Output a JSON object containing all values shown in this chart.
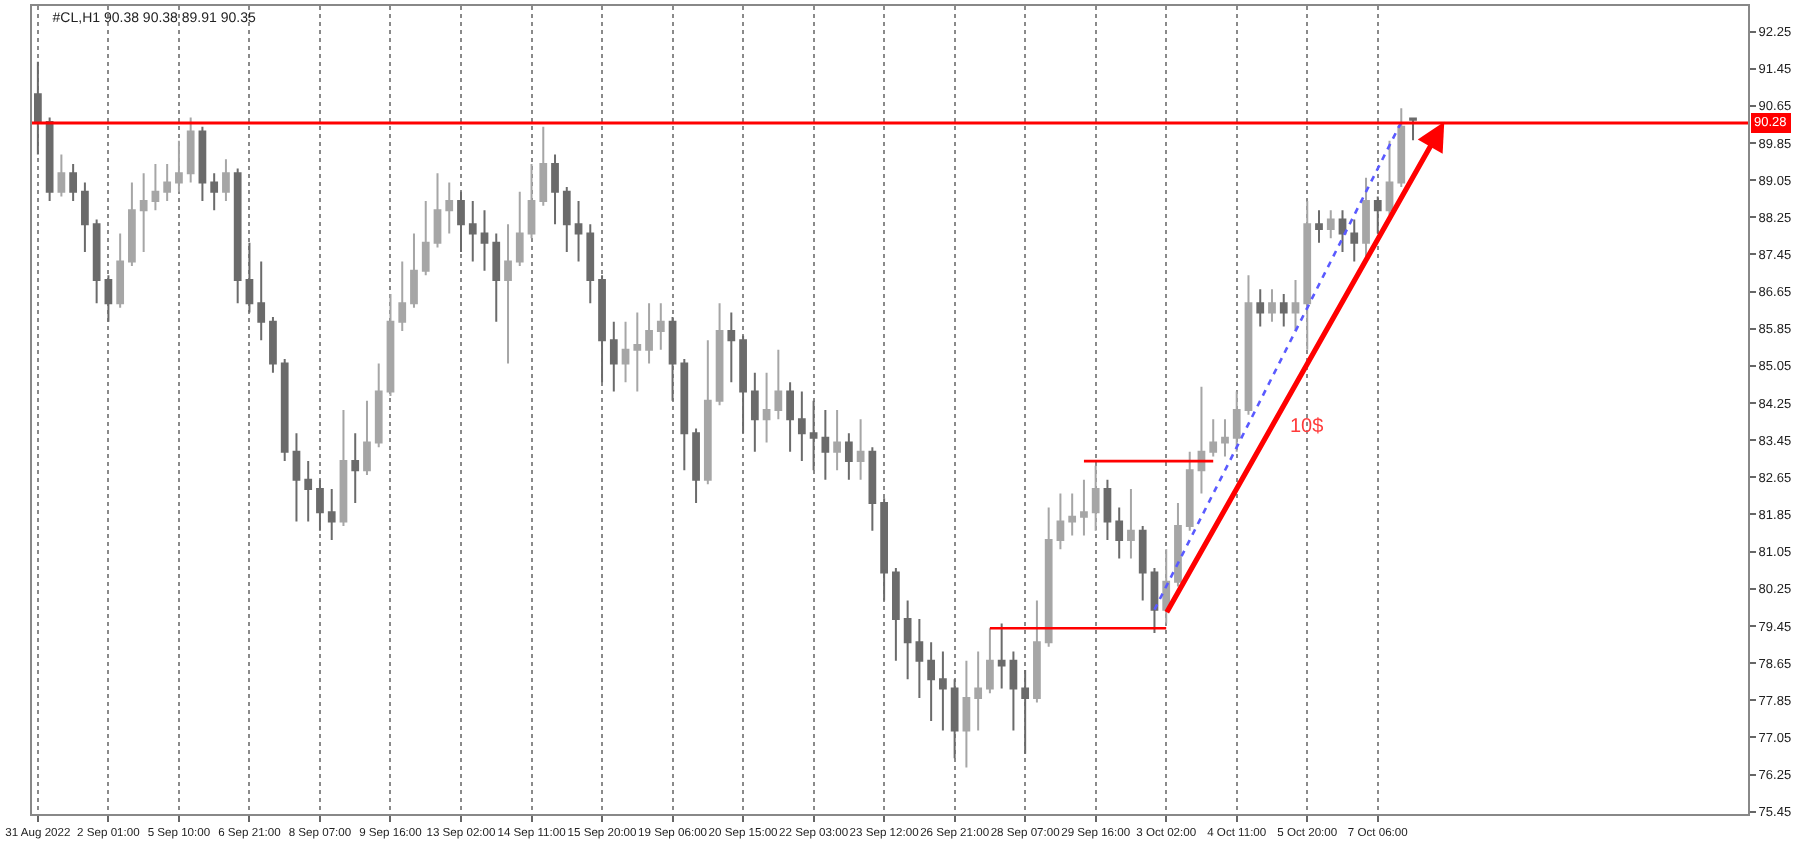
{
  "chart_data": {
    "type": "candlestick",
    "title": "#CL,H1 90.38 90.38 89.91 90.35",
    "categories": [
      "31 Aug 2022",
      null,
      null,
      null,
      null,
      null,
      "2 Sep 01:00",
      null,
      null,
      null,
      null,
      null,
      "5 Sep 10:00",
      null,
      null,
      null,
      null,
      null,
      "6 Sep 21:00",
      null,
      null,
      null,
      null,
      null,
      "8 Sep 07:00",
      null,
      null,
      null,
      null,
      null,
      "9 Sep 16:00",
      null,
      null,
      null,
      null,
      null,
      "13 Sep 02:00",
      null,
      null,
      null,
      null,
      null,
      "14 Sep 11:00",
      null,
      null,
      null,
      null,
      null,
      "15 Sep 20:00",
      null,
      null,
      null,
      null,
      null,
      "19 Sep 06:00",
      null,
      null,
      null,
      null,
      null,
      "20 Sep 15:00",
      null,
      null,
      null,
      null,
      null,
      "22 Sep 03:00",
      null,
      null,
      null,
      null,
      null,
      "23 Sep 12:00",
      null,
      null,
      null,
      null,
      null,
      "26 Sep 21:00",
      null,
      null,
      null,
      null,
      null,
      "28 Sep 07:00",
      null,
      null,
      null,
      null,
      null,
      "29 Sep 16:00",
      null,
      null,
      null,
      null,
      null,
      "3 Oct 02:00",
      null,
      null,
      null,
      null,
      null,
      "4 Oct 11:00",
      null,
      null,
      null,
      null,
      null,
      "5 Oct 20:00",
      null,
      null,
      null,
      null,
      null,
      "7 Oct 06:00",
      null,
      null,
      null,
      null,
      null,
      null,
      null,
      null,
      null,
      null,
      null,
      null,
      null,
      null,
      null,
      null,
      null,
      null,
      null,
      null,
      null,
      null,
      null,
      null,
      null,
      null,
      null,
      null,
      null,
      null,
      null
    ],
    "ohlc": [
      [
        90.9,
        91.6,
        89.6,
        90.3
      ],
      [
        90.3,
        90.4,
        88.6,
        88.8
      ],
      [
        88.8,
        89.6,
        88.7,
        89.2
      ],
      [
        89.2,
        89.4,
        88.6,
        88.8
      ],
      [
        88.8,
        89.0,
        87.5,
        88.1
      ],
      [
        88.1,
        88.2,
        86.4,
        86.9
      ],
      [
        86.9,
        87.0,
        86.0,
        86.4
      ],
      [
        86.4,
        87.9,
        86.3,
        87.3
      ],
      [
        87.3,
        89.0,
        87.2,
        88.4
      ],
      [
        88.4,
        89.2,
        87.5,
        88.6
      ],
      [
        88.6,
        89.4,
        88.4,
        88.8
      ],
      [
        88.8,
        89.4,
        88.6,
        89.0
      ],
      [
        89.0,
        89.9,
        88.8,
        89.2
      ],
      [
        89.2,
        90.4,
        89.0,
        90.1
      ],
      [
        90.1,
        90.2,
        88.6,
        89.0
      ],
      [
        89.0,
        89.2,
        88.4,
        88.8
      ],
      [
        88.8,
        89.5,
        88.6,
        89.2
      ],
      [
        89.2,
        89.3,
        86.4,
        86.9
      ],
      [
        86.9,
        87.7,
        86.2,
        86.4
      ],
      [
        86.4,
        87.3,
        85.6,
        86.0
      ],
      [
        86.0,
        86.1,
        84.9,
        85.1
      ],
      [
        85.1,
        85.2,
        83.0,
        83.2
      ],
      [
        83.2,
        83.6,
        81.7,
        82.6
      ],
      [
        82.6,
        83.0,
        81.7,
        82.4
      ],
      [
        82.4,
        82.6,
        81.5,
        81.9
      ],
      [
        81.9,
        82.4,
        81.3,
        81.7
      ],
      [
        81.7,
        84.1,
        81.6,
        83.0
      ],
      [
        83.0,
        83.6,
        82.1,
        82.8
      ],
      [
        82.8,
        84.3,
        82.7,
        83.4
      ],
      [
        83.4,
        85.1,
        83.3,
        84.5
      ],
      [
        84.5,
        86.6,
        84.4,
        86.0
      ],
      [
        86.0,
        87.3,
        85.8,
        86.4
      ],
      [
        86.4,
        87.9,
        86.3,
        87.1
      ],
      [
        87.1,
        88.6,
        87.0,
        87.7
      ],
      [
        87.7,
        89.2,
        87.6,
        88.4
      ],
      [
        88.4,
        89.0,
        87.9,
        88.6
      ],
      [
        88.6,
        88.8,
        87.5,
        88.1
      ],
      [
        88.1,
        88.6,
        87.3,
        87.9
      ],
      [
        87.9,
        88.4,
        87.1,
        87.7
      ],
      [
        87.7,
        87.9,
        86.0,
        86.9
      ],
      [
        86.9,
        88.1,
        85.1,
        87.3
      ],
      [
        87.3,
        88.8,
        87.2,
        87.9
      ],
      [
        87.9,
        89.4,
        87.8,
        88.6
      ],
      [
        88.6,
        90.2,
        88.5,
        89.4
      ],
      [
        89.4,
        89.6,
        88.1,
        88.8
      ],
      [
        88.8,
        88.9,
        87.5,
        88.1
      ],
      [
        88.1,
        88.6,
        87.3,
        87.9
      ],
      [
        87.9,
        88.1,
        86.4,
        86.9
      ],
      [
        86.9,
        87.0,
        84.7,
        85.6
      ],
      [
        85.6,
        86.0,
        84.5,
        85.1
      ],
      [
        85.1,
        86.0,
        84.7,
        85.4
      ],
      [
        85.4,
        86.2,
        84.5,
        85.5
      ],
      [
        85.4,
        86.4,
        85.1,
        85.8
      ],
      [
        85.8,
        86.4,
        85.4,
        86.0
      ],
      [
        86.0,
        86.1,
        84.3,
        85.1
      ],
      [
        85.1,
        85.2,
        82.8,
        83.6
      ],
      [
        83.6,
        83.7,
        82.1,
        82.6
      ],
      [
        82.6,
        85.6,
        82.5,
        84.3
      ],
      [
        84.3,
        86.4,
        84.2,
        85.8
      ],
      [
        85.8,
        86.2,
        84.7,
        85.6
      ],
      [
        85.6,
        85.7,
        83.6,
        84.5
      ],
      [
        84.5,
        84.9,
        83.2,
        83.9
      ],
      [
        83.9,
        84.9,
        83.4,
        84.1
      ],
      [
        84.1,
        85.4,
        83.9,
        84.5
      ],
      [
        84.5,
        84.7,
        83.2,
        83.9
      ],
      [
        83.9,
        84.5,
        83.0,
        83.6
      ],
      [
        83.6,
        84.3,
        82.8,
        83.5
      ],
      [
        83.5,
        84.1,
        82.6,
        83.2
      ],
      [
        83.2,
        84.1,
        82.8,
        83.4
      ],
      [
        83.4,
        83.6,
        82.6,
        83.0
      ],
      [
        83.0,
        83.9,
        82.6,
        83.2
      ],
      [
        83.2,
        83.3,
        81.5,
        82.1
      ],
      [
        82.1,
        82.2,
        80.0,
        80.6
      ],
      [
        80.6,
        80.7,
        78.7,
        79.6
      ],
      [
        79.6,
        80.0,
        78.3,
        79.1
      ],
      [
        79.1,
        79.6,
        77.9,
        78.7
      ],
      [
        78.7,
        79.1,
        77.4,
        78.3
      ],
      [
        78.3,
        78.9,
        77.2,
        78.1
      ],
      [
        78.1,
        78.3,
        76.6,
        77.2
      ],
      [
        77.2,
        78.7,
        76.4,
        77.9
      ],
      [
        77.9,
        78.9,
        77.2,
        78.1
      ],
      [
        78.1,
        79.4,
        78.0,
        78.7
      ],
      [
        78.7,
        79.5,
        78.1,
        78.6
      ],
      [
        78.7,
        78.9,
        77.2,
        78.1
      ],
      [
        78.1,
        78.5,
        76.7,
        77.9
      ],
      [
        77.9,
        80.0,
        77.8,
        79.1
      ],
      [
        79.1,
        82.0,
        79.0,
        81.3
      ],
      [
        81.3,
        82.3,
        81.1,
        81.7
      ],
      [
        81.7,
        82.3,
        81.4,
        81.8
      ],
      [
        81.8,
        82.6,
        81.4,
        81.9
      ],
      [
        81.9,
        82.9,
        81.5,
        82.4
      ],
      [
        82.4,
        82.6,
        81.3,
        81.7
      ],
      [
        81.7,
        82.0,
        80.9,
        81.3
      ],
      [
        81.3,
        82.4,
        80.9,
        81.5
      ],
      [
        81.5,
        81.6,
        80.0,
        80.6
      ],
      [
        80.6,
        80.7,
        79.3,
        79.8
      ],
      [
        79.8,
        81.1,
        79.5,
        80.4
      ],
      [
        80.4,
        82.1,
        80.3,
        81.6
      ],
      [
        81.6,
        83.2,
        81.5,
        82.8
      ],
      [
        82.8,
        84.6,
        82.3,
        83.2
      ],
      [
        83.2,
        83.9,
        83.1,
        83.4
      ],
      [
        83.4,
        83.9,
        83.1,
        83.5
      ],
      [
        83.5,
        84.5,
        83.2,
        84.1
      ],
      [
        84.1,
        87.0,
        84.0,
        86.4
      ],
      [
        86.4,
        86.7,
        85.9,
        86.2
      ],
      [
        86.2,
        86.7,
        86.0,
        86.4
      ],
      [
        86.4,
        86.6,
        85.9,
        86.2
      ],
      [
        86.2,
        86.9,
        85.8,
        86.4
      ],
      [
        86.4,
        88.6,
        85.4,
        88.1
      ],
      [
        88.1,
        88.4,
        87.7,
        88.0
      ],
      [
        88.0,
        88.4,
        87.8,
        88.2
      ],
      [
        88.2,
        88.4,
        87.5,
        87.9
      ],
      [
        87.9,
        88.2,
        87.3,
        87.7
      ],
      [
        87.7,
        89.1,
        87.4,
        88.6
      ],
      [
        88.6,
        88.7,
        87.9,
        88.4
      ],
      [
        88.4,
        89.9,
        88.3,
        89.0
      ],
      [
        89.0,
        90.6,
        88.9,
        90.2
      ],
      [
        90.38,
        90.38,
        89.91,
        90.35
      ],
      null,
      null,
      null,
      null,
      null,
      null,
      null,
      null,
      null,
      null,
      null,
      null,
      null,
      null,
      null,
      null,
      null,
      null,
      null,
      null,
      null,
      null,
      null,
      null,
      null,
      null,
      null,
      null
    ],
    "colors": [
      "#6b6b6b",
      "#6b6b6b",
      "#a6a6a6",
      "#6b6b6b",
      "#6b6b6b",
      "#6b6b6b",
      "#6b6b6b",
      "#a6a6a6",
      "#a6a6a6",
      "#a6a6a6",
      "#a6a6a6",
      "#a6a6a6",
      "#a6a6a6",
      "#a6a6a6",
      "#6b6b6b",
      "#6b6b6b",
      "#a6a6a6",
      "#6b6b6b",
      "#6b6b6b",
      "#6b6b6b",
      "#6b6b6b",
      "#6b6b6b",
      "#6b6b6b",
      "#6b6b6b",
      "#6b6b6b",
      "#6b6b6b",
      "#a6a6a6",
      "#6b6b6b",
      "#a6a6a6",
      "#a6a6a6",
      "#a6a6a6",
      "#a6a6a6",
      "#a6a6a6",
      "#a6a6a6",
      "#a6a6a6",
      "#a6a6a6",
      "#6b6b6b",
      "#6b6b6b",
      "#6b6b6b",
      "#6b6b6b",
      "#a6a6a6",
      "#a6a6a6",
      "#a6a6a6",
      "#a6a6a6",
      "#6b6b6b",
      "#6b6b6b",
      "#6b6b6b",
      "#6b6b6b",
      "#6b6b6b",
      "#6b6b6b",
      "#a6a6a6",
      "#a6a6a6",
      "#a6a6a6",
      "#a6a6a6",
      "#6b6b6b",
      "#6b6b6b",
      "#6b6b6b",
      "#a6a6a6",
      "#a6a6a6",
      "#6b6b6b",
      "#6b6b6b",
      "#6b6b6b",
      "#a6a6a6",
      "#a6a6a6",
      "#6b6b6b",
      "#6b6b6b",
      "#6b6b6b",
      "#6b6b6b",
      "#a6a6a6",
      "#6b6b6b",
      "#a6a6a6",
      "#6b6b6b",
      "#6b6b6b",
      "#6b6b6b",
      "#6b6b6b",
      "#6b6b6b",
      "#6b6b6b",
      "#6b6b6b",
      "#6b6b6b",
      "#a6a6a6",
      "#a6a6a6",
      "#a6a6a6",
      "#6b6b6b",
      "#6b6b6b",
      "#6b6b6b",
      "#a6a6a6",
      "#a6a6a6",
      "#a6a6a6",
      "#a6a6a6",
      "#a6a6a6",
      "#a6a6a6",
      "#6b6b6b",
      "#6b6b6b",
      "#a6a6a6",
      "#6b6b6b",
      "#6b6b6b",
      "#a6a6a6",
      "#a6a6a6",
      "#a6a6a6",
      "#a6a6a6",
      "#a6a6a6",
      "#a6a6a6",
      "#a6a6a6",
      "#a6a6a6",
      "#6b6b6b",
      "#a6a6a6",
      "#6b6b6b",
      "#a6a6a6",
      "#a6a6a6",
      "#6b6b6b",
      "#a6a6a6",
      "#6b6b6b",
      "#6b6b6b",
      "#a6a6a6",
      "#6b6b6b",
      "#a6a6a6",
      "#a6a6a6",
      "#6b6b6b",
      null,
      null,
      null,
      null,
      null,
      null,
      null,
      null,
      null,
      null,
      null,
      null,
      null,
      null,
      null,
      null,
      null,
      null,
      null,
      null,
      null,
      null,
      null,
      null,
      null,
      null,
      null,
      null
    ],
    "series": [
      {
        "type": "line",
        "color": "#ff0000",
        "values": [
          null,
          null,
          null,
          null,
          null,
          null,
          null,
          null,
          null,
          null,
          null,
          null,
          null,
          null,
          null,
          null,
          null,
          null,
          null,
          null,
          null,
          null,
          null,
          null,
          null,
          null,
          null,
          null,
          null,
          null,
          null,
          null,
          null,
          null,
          null,
          null,
          null,
          null,
          null,
          null,
          null,
          null,
          null,
          null,
          null,
          null,
          null,
          null,
          null,
          null,
          null,
          null,
          null,
          null,
          null,
          null,
          null,
          null,
          null,
          null,
          null,
          null,
          null,
          null,
          null,
          null,
          null,
          null,
          null,
          null,
          null,
          null,
          null,
          null,
          null,
          null,
          null,
          null,
          null,
          null,
          null,
          79.4,
          null,
          null,
          null,
          null,
          null,
          null,
          null,
          null,
          null,
          null,
          null,
          null,
          null,
          null,
          79.4,
          null,
          null,
          null,
          null,
          null,
          null,
          null,
          null,
          null,
          null,
          null,
          null,
          null,
          null,
          null,
          null,
          null,
          null,
          null,
          null,
          null,
          null,
          null,
          null,
          null,
          null,
          null,
          null,
          null,
          null,
          null,
          null,
          null,
          null,
          null,
          null,
          null,
          null,
          null,
          null,
          null,
          null,
          null,
          null,
          null,
          null,
          null,
          null,
          null
        ]
      },
      {
        "type": "line",
        "color": "#ff0000",
        "values": [
          null,
          null,
          null,
          null,
          null,
          null,
          null,
          null,
          null,
          null,
          null,
          null,
          null,
          null,
          null,
          null,
          null,
          null,
          null,
          null,
          null,
          null,
          null,
          null,
          null,
          null,
          null,
          null,
          null,
          null,
          null,
          null,
          null,
          null,
          null,
          null,
          null,
          null,
          null,
          null,
          null,
          null,
          null,
          null,
          null,
          null,
          null,
          null,
          null,
          null,
          null,
          null,
          null,
          null,
          null,
          null,
          null,
          null,
          null,
          null,
          null,
          null,
          null,
          null,
          null,
          null,
          null,
          null,
          null,
          null,
          null,
          null,
          null,
          null,
          null,
          null,
          null,
          null,
          null,
          null,
          null,
          null,
          null,
          null,
          null,
          null,
          null,
          null,
          null,
          83.0,
          null,
          null,
          null,
          null,
          null,
          null,
          null,
          null,
          null,
          null,
          83.0,
          null,
          null,
          null,
          null,
          null,
          null,
          null,
          null,
          null,
          null,
          null,
          null,
          null,
          null,
          null,
          null,
          null,
          null,
          null,
          null,
          null,
          null,
          null,
          null,
          null,
          null,
          null,
          null,
          null,
          null,
          null,
          null,
          null,
          null,
          null,
          null,
          null,
          null,
          null,
          null,
          null,
          null,
          null,
          null,
          null
        ]
      },
      {
        "type": "line",
        "color": "#5a5aff",
        "line_style": "dotted",
        "values": [
          null,
          null,
          null,
          null,
          null,
          null,
          null,
          null,
          null,
          null,
          null,
          null,
          null,
          null,
          null,
          null,
          null,
          null,
          null,
          null,
          null,
          null,
          null,
          null,
          null,
          null,
          null,
          null,
          null,
          null,
          null,
          null,
          null,
          null,
          null,
          null,
          null,
          null,
          null,
          null,
          null,
          null,
          null,
          null,
          null,
          null,
          null,
          null,
          null,
          null,
          null,
          null,
          null,
          null,
          null,
          null,
          null,
          null,
          null,
          null,
          null,
          null,
          null,
          null,
          null,
          null,
          null,
          null,
          null,
          null,
          null,
          null,
          null,
          null,
          null,
          null,
          null,
          null,
          null,
          null,
          null,
          null,
          null,
          null,
          null,
          null,
          null,
          null,
          null,
          null,
          null,
          null,
          null,
          null,
          null,
          79.8,
          null,
          null,
          null,
          null,
          null,
          null,
          null,
          null,
          null,
          null,
          null,
          null,
          null,
          null,
          null,
          null,
          null,
          null,
          null,
          null,
          90.3,
          null,
          null,
          null,
          null,
          null,
          null,
          null,
          null,
          null,
          null,
          null,
          null,
          null,
          null,
          null,
          null,
          null,
          null,
          null,
          null,
          null,
          null,
          null,
          null,
          null,
          null,
          null,
          null,
          null
        ]
      }
    ],
    "ref_lines": [
      {
        "axis": "y",
        "value": 90.28,
        "label": "90.28",
        "color": "#ff0000"
      }
    ],
    "annotations": [
      "10$"
    ],
    "ylim": [
      75.4,
      92.8
    ],
    "yticks": [
      75.45,
      76.25,
      77.05,
      77.85,
      78.65,
      79.45,
      80.25,
      81.05,
      81.85,
      82.65,
      83.45,
      84.25,
      85.05,
      85.85,
      86.65,
      87.45,
      88.25,
      89.05,
      89.85,
      90.65,
      91.45,
      92.25
    ],
    "grid": "x"
  }
}
